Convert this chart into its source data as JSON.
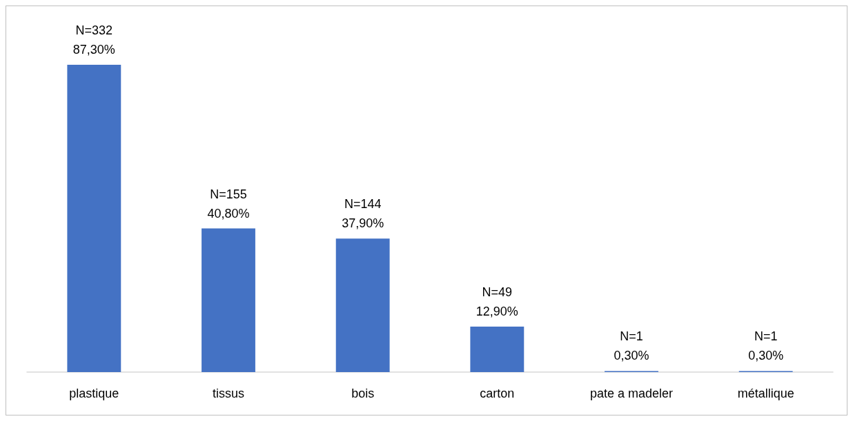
{
  "chart_data": {
    "type": "bar",
    "categories": [
      "plastique",
      "tissus",
      "bois",
      "carton",
      "pate a madeler",
      "métallique"
    ],
    "values": [
      87.3,
      40.8,
      37.9,
      12.9,
      0.3,
      0.3
    ],
    "value_labels": [
      "N=332\n87,30%",
      "N=155\n40,80%",
      "N=144\n37,90%",
      "N=49\n12,90%",
      "N=1\n0,30%",
      "N=1\n0,30%"
    ],
    "color": "#4472c4",
    "grid": false
  }
}
